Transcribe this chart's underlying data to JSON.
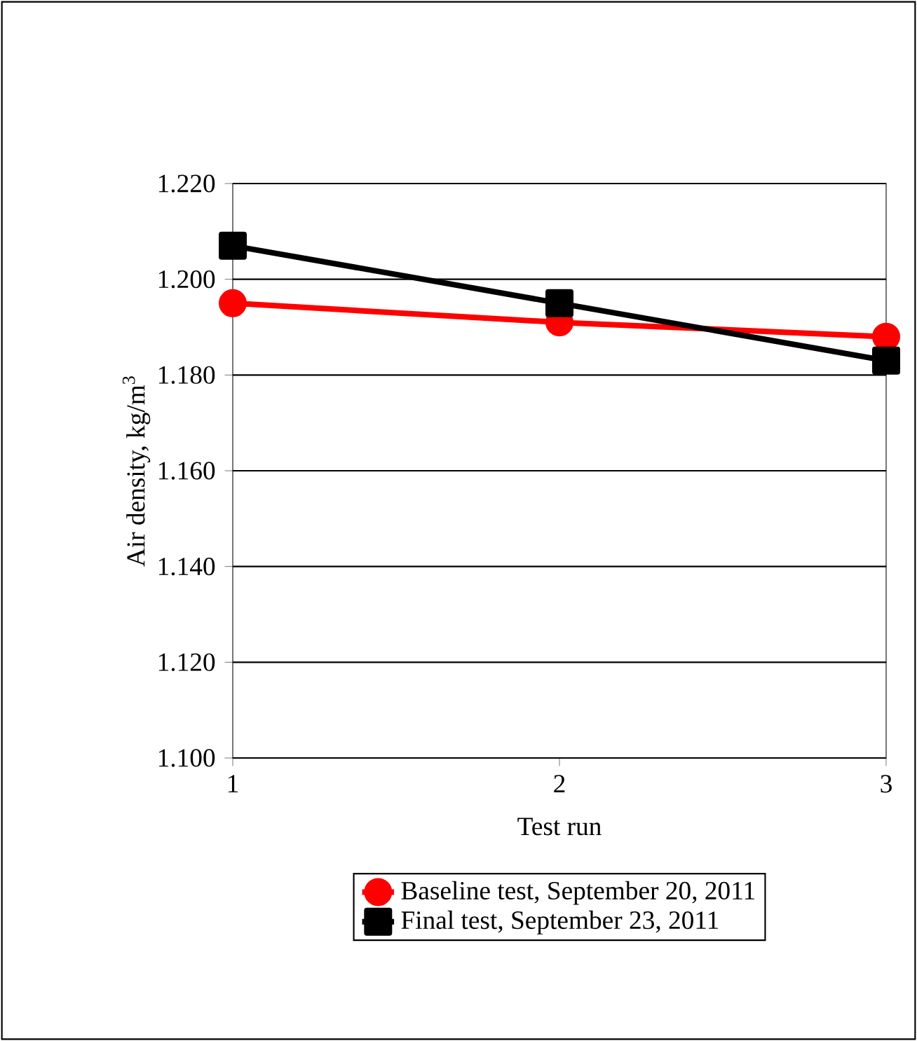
{
  "chart_data": {
    "type": "line",
    "xlabel": "Test run",
    "ylabel": "Air density, kg/m$^{3}$",
    "x": [
      1,
      2,
      3
    ],
    "series": [
      {
        "name": "Baseline test, September 20, 2011",
        "color": "#ff0000",
        "marker": "circle",
        "values": [
          1.195,
          1.191,
          1.188
        ]
      },
      {
        "name": "Final test, September 23, 2011",
        "color": "#000000",
        "marker": "square",
        "values": [
          1.207,
          1.195,
          1.183
        ]
      }
    ],
    "xlim": [
      1,
      3
    ],
    "xticks": [
      1,
      2,
      3
    ],
    "ylim": [
      1.1,
      1.22
    ],
    "yticks": [
      {
        "value": 1.1,
        "label": "1.100"
      },
      {
        "value": 1.12,
        "label": "1.120"
      },
      {
        "value": 1.14,
        "label": "1.140"
      },
      {
        "value": 1.16,
        "label": "1.160"
      },
      {
        "value": 1.18,
        "label": "1.180"
      },
      {
        "value": 1.2,
        "label": "1.200"
      },
      {
        "value": 1.22,
        "label": "1.220"
      }
    ],
    "grid": "y",
    "legend": "bottom",
    "line_style": "solid"
  }
}
